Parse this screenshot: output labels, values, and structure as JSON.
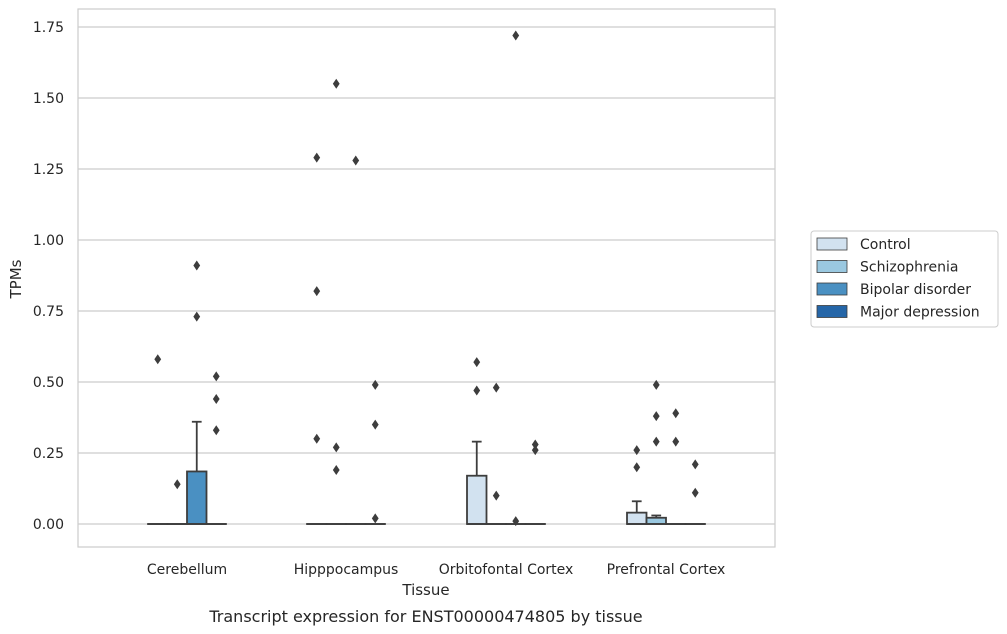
{
  "caption": "Transcript expression for ENST00000474805 by tissue",
  "chart_data": {
    "type": "box",
    "xlabel": "Tissue",
    "ylabel": "TPMs",
    "ylim": [
      -0.085,
      1.81
    ],
    "yticks": [
      "0.00",
      "0.25",
      "0.50",
      "0.75",
      "1.00",
      "1.25",
      "1.50",
      "1.75"
    ],
    "grid": "horizontal",
    "legend_position": "right",
    "categories": [
      "Cerebellum",
      "Hipppocampus",
      "Orbitofontal Cortex",
      "Prefrontal Cortex"
    ],
    "series": [
      {
        "name": "Control",
        "color": "#d2e2f0"
      },
      {
        "name": "Schizophrenia",
        "color": "#9ac8e0"
      },
      {
        "name": "Bipolar disorder",
        "color": "#4a90c2"
      },
      {
        "name": "Major depression",
        "color": "#2566a8"
      }
    ],
    "boxes": [
      {
        "category": "Cerebellum",
        "group": "Control",
        "q1": 0,
        "median": 0,
        "q3": 0,
        "whisker_low": 0,
        "whisker_high": 0,
        "outliers": [
          0.58
        ]
      },
      {
        "category": "Cerebellum",
        "group": "Schizophrenia",
        "q1": 0,
        "median": 0,
        "q3": 0,
        "whisker_low": 0,
        "whisker_high": 0,
        "outliers": [
          0.14
        ]
      },
      {
        "category": "Cerebellum",
        "group": "Bipolar disorder",
        "q1": 0,
        "median": 0,
        "q3": 0.185,
        "whisker_low": 0,
        "whisker_high": 0.36,
        "outliers": [
          0.91,
          0.73
        ]
      },
      {
        "category": "Cerebellum",
        "group": "Major depression",
        "q1": 0,
        "median": 0,
        "q3": 0,
        "whisker_low": 0,
        "whisker_high": 0,
        "outliers": [
          0.52,
          0.44,
          0.33
        ]
      },
      {
        "category": "Hipppocampus",
        "group": "Control",
        "q1": 0,
        "median": 0,
        "q3": 0,
        "whisker_low": 0,
        "whisker_high": 0,
        "outliers": [
          1.29,
          0.82,
          0.3
        ]
      },
      {
        "category": "Hipppocampus",
        "group": "Schizophrenia",
        "q1": 0,
        "median": 0,
        "q3": 0,
        "whisker_low": 0,
        "whisker_high": 0,
        "outliers": [
          1.55,
          0.27,
          0.19
        ]
      },
      {
        "category": "Hipppocampus",
        "group": "Bipolar disorder",
        "q1": 0,
        "median": 0,
        "q3": 0,
        "whisker_low": 0,
        "whisker_high": 0,
        "outliers": [
          1.28
        ]
      },
      {
        "category": "Hipppocampus",
        "group": "Major depression",
        "q1": 0,
        "median": 0,
        "q3": 0,
        "whisker_low": 0,
        "whisker_high": 0,
        "outliers": [
          0.49,
          0.35,
          0.02
        ]
      },
      {
        "category": "Orbitofontal Cortex",
        "group": "Control",
        "q1": 0,
        "median": 0,
        "q3": 0.17,
        "whisker_low": 0,
        "whisker_high": 0.29,
        "outliers": [
          0.57,
          0.47
        ]
      },
      {
        "category": "Orbitofontal Cortex",
        "group": "Schizophrenia",
        "q1": 0,
        "median": 0,
        "q3": 0,
        "whisker_low": 0,
        "whisker_high": 0,
        "outliers": [
          0.48,
          0.1
        ]
      },
      {
        "category": "Orbitofontal Cortex",
        "group": "Bipolar disorder",
        "q1": 0,
        "median": 0,
        "q3": 0,
        "whisker_low": 0,
        "whisker_high": 0,
        "outliers": [
          1.72,
          0.01
        ]
      },
      {
        "category": "Orbitofontal Cortex",
        "group": "Major depression",
        "q1": 0,
        "median": 0,
        "q3": 0,
        "whisker_low": 0,
        "whisker_high": 0,
        "outliers": [
          0.28,
          0.26
        ]
      },
      {
        "category": "Prefrontal Cortex",
        "group": "Control",
        "q1": 0,
        "median": 0,
        "q3": 0.04,
        "whisker_low": 0,
        "whisker_high": 0.08,
        "outliers": [
          0.26,
          0.2
        ]
      },
      {
        "category": "Prefrontal Cortex",
        "group": "Schizophrenia",
        "q1": 0,
        "median": 0,
        "q3": 0.022,
        "whisker_low": 0,
        "whisker_high": 0.03,
        "outliers": [
          0.49,
          0.38,
          0.29
        ]
      },
      {
        "category": "Prefrontal Cortex",
        "group": "Bipolar disorder",
        "q1": 0,
        "median": 0,
        "q3": 0,
        "whisker_low": 0,
        "whisker_high": 0,
        "outliers": [
          0.39,
          0.29
        ]
      },
      {
        "category": "Prefrontal Cortex",
        "group": "Major depression",
        "q1": 0,
        "median": 0,
        "q3": 0,
        "whisker_low": 0,
        "whisker_high": 0,
        "outliers": [
          0.21,
          0.11
        ]
      }
    ]
  }
}
